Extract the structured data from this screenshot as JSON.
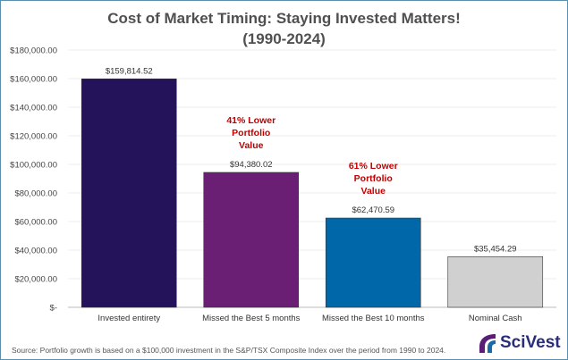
{
  "chart_data": {
    "type": "bar",
    "title_line1": "Cost of Market Timing: Staying Invested Matters!",
    "title_line2": "(1990-2024)",
    "categories": [
      "Invested entirety",
      "Missed the Best 5 months",
      "Missed the Best 10 months",
      "Nominal Cash"
    ],
    "values": [
      159814.52,
      94380.02,
      62470.59,
      35454.29
    ],
    "data_labels": [
      "$159,814.52",
      "$94,380.02",
      "$62,470.59",
      "$35,454.29"
    ],
    "colors": [
      "#24135a",
      "#6b1f74",
      "#0068a8",
      "#d0d0d0"
    ],
    "ylim": [
      0,
      180000
    ],
    "yticks": [
      0,
      20000,
      40000,
      60000,
      80000,
      100000,
      120000,
      140000,
      160000,
      180000
    ],
    "ytick_labels": [
      "$-",
      "$20,000.00",
      "$40,000.00",
      "$60,000.00",
      "$80,000.00",
      "$100,000.00",
      "$120,000.00",
      "$140,000.00",
      "$160,000.00",
      "$180,000.00"
    ],
    "grid": true,
    "annotations": [
      {
        "category": 1,
        "lines": [
          "41% Lower",
          "Portfolio",
          "Value"
        ],
        "color": "#c00000"
      },
      {
        "category": 2,
        "lines": [
          "61% Lower",
          "Portfolio",
          "Value"
        ],
        "color": "#c00000"
      }
    ]
  },
  "source": "Source: Portfolio growth is based on a $100,000 investment in the S&P/TSX Composite Index over the period from 1990 to 2024.",
  "logo": {
    "text": "SciVest"
  }
}
